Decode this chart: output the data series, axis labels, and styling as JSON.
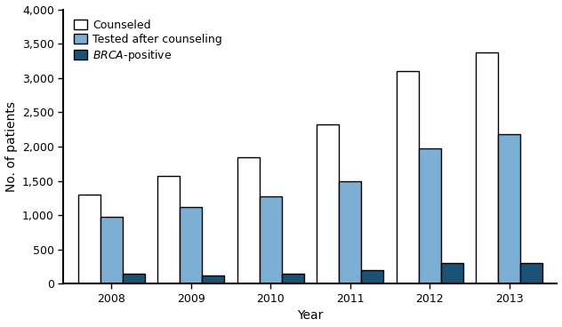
{
  "years": [
    2008,
    2009,
    2010,
    2011,
    2012,
    2013
  ],
  "counseled": [
    1300,
    1575,
    1850,
    2325,
    3100,
    3375
  ],
  "tested": [
    975,
    1125,
    1275,
    1500,
    1975,
    2175
  ],
  "brca_positive": [
    150,
    125,
    150,
    200,
    300,
    300
  ],
  "color_counseled": "#ffffff",
  "color_tested": "#7bafd4",
  "color_brca": "#1a5276",
  "edgecolor": "#000000",
  "ylabel": "No. of patients",
  "xlabel": "Year",
  "ylim": [
    0,
    4000
  ],
  "yticks": [
    0,
    500,
    1000,
    1500,
    2000,
    2500,
    3000,
    3500,
    4000
  ],
  "legend_labels": [
    "Counseled",
    "Tested after counseling",
    "BRCA-positive"
  ],
  "axis_fontsize": 10,
  "tick_fontsize": 9,
  "legend_fontsize": 9,
  "bar_width": 0.28,
  "spine_linewidth": 1.5
}
